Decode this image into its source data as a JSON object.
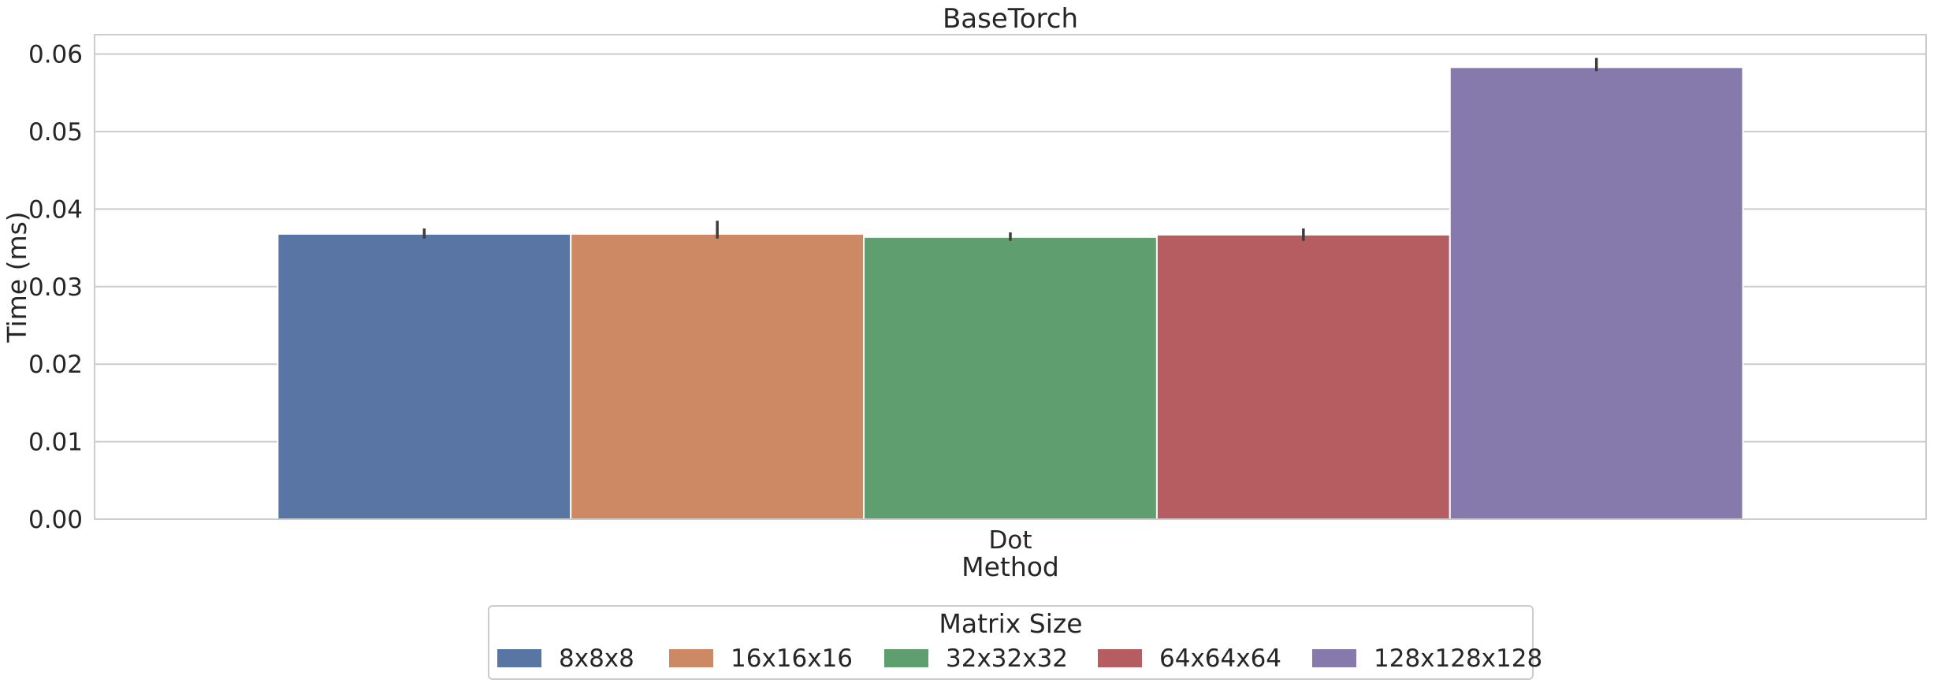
{
  "chart_data": {
    "type": "bar",
    "title": "BaseTorch",
    "xlabel": "Method",
    "ylabel": "Time (ms)",
    "categories": [
      "Dot"
    ],
    "ylim": [
      0,
      0.0625
    ],
    "yticks": [
      0.0,
      0.01,
      0.02,
      0.03,
      0.04,
      0.05,
      0.06
    ],
    "ytick_labels": [
      "0.00",
      "0.01",
      "0.02",
      "0.03",
      "0.04",
      "0.05",
      "0.06"
    ],
    "grid": "horizontal",
    "legend": {
      "title": "Matrix Size",
      "placement": "bottom-center, below axes"
    },
    "series": [
      {
        "name": "8x8x8",
        "values": [
          0.0368
        ],
        "error": [
          [
            0.0362,
            0.0375
          ]
        ],
        "color": "#5975a4"
      },
      {
        "name": "16x16x16",
        "values": [
          0.0368
        ],
        "error": [
          [
            0.0362,
            0.0385
          ]
        ],
        "color": "#cc8963"
      },
      {
        "name": "32x32x32",
        "values": [
          0.0364
        ],
        "error": [
          [
            0.0359,
            0.037
          ]
        ],
        "color": "#5f9e6e"
      },
      {
        "name": "64x64x64",
        "values": [
          0.0367
        ],
        "error": [
          [
            0.0359,
            0.0375
          ]
        ],
        "color": "#b55d60"
      },
      {
        "name": "128x128x128",
        "values": [
          0.0583
        ],
        "error": [
          [
            0.0578,
            0.0595
          ]
        ],
        "color": "#857aab"
      }
    ]
  }
}
